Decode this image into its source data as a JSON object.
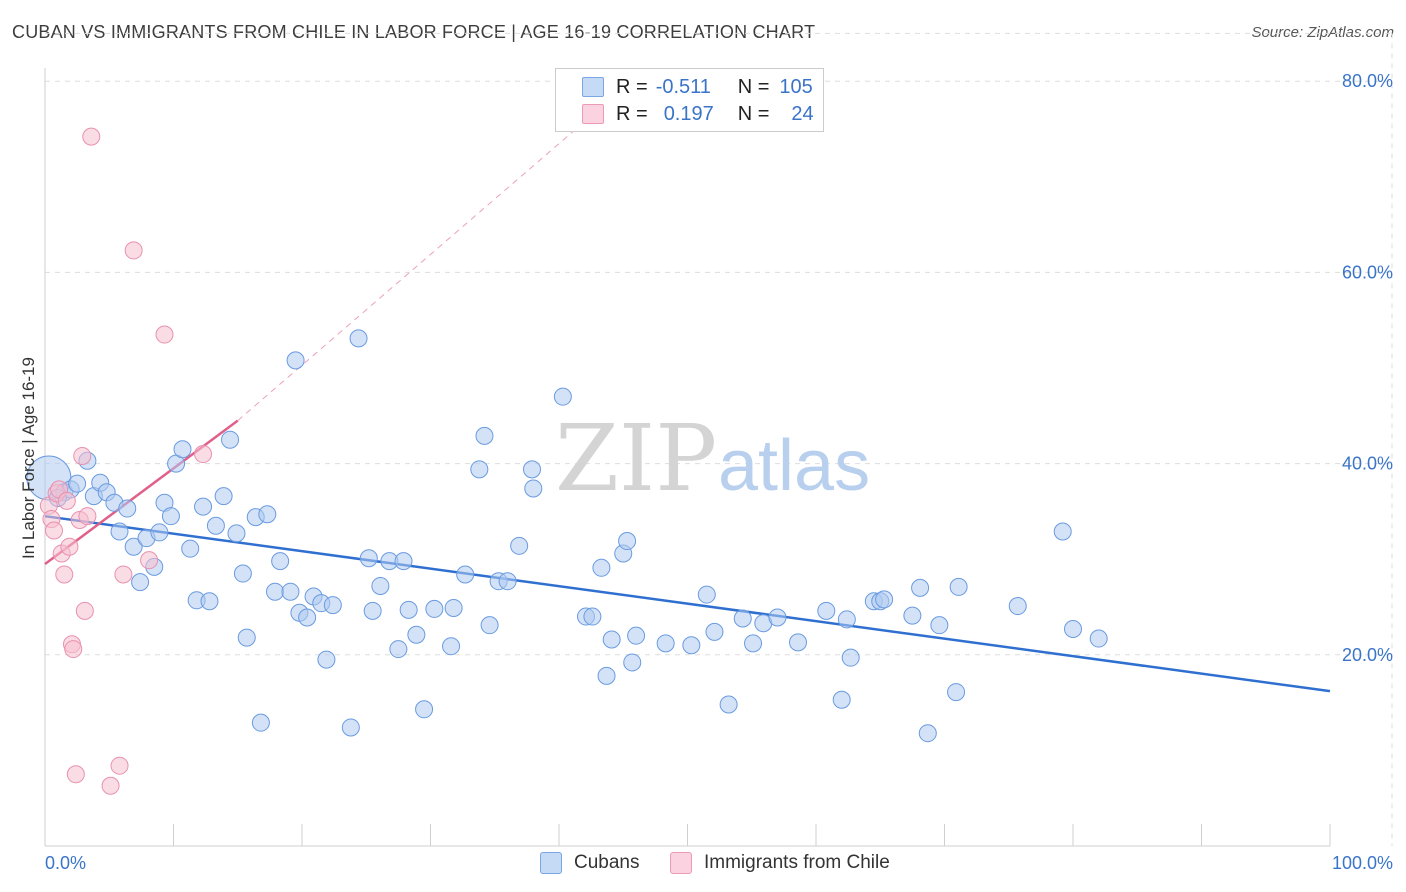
{
  "header": {
    "title": "CUBAN VS IMMIGRANTS FROM CHILE IN LABOR FORCE | AGE 16-19 CORRELATION CHART",
    "source": "Source: ZipAtlas.com"
  },
  "watermark": {
    "zip": "ZIP",
    "atlas": "atlas"
  },
  "legend_top": {
    "rows": [
      {
        "r_label": "R =",
        "r_value": "-0.511",
        "n_label": "N =",
        "n_value": "105"
      },
      {
        "r_label": "R =",
        "r_value": "0.197",
        "n_label": "N =",
        "n_value": "24"
      }
    ]
  },
  "colors": {
    "cubans_fill": "#aecbf0",
    "cubans_stroke": "#6a9be0",
    "cubans_line": "#2f6fd0",
    "chile_fill": "#f6bfd0",
    "chile_stroke": "#e991b0",
    "chile_line": "#e0608a",
    "axis_label": "#3a74c9",
    "grid": "#dddddd"
  },
  "chart_data": {
    "type": "scatter",
    "title": "CUBAN VS IMMIGRANTS FROM CHILE IN LABOR FORCE | AGE 16-19 CORRELATION CHART",
    "xlabel": "",
    "ylabel": "In Labor Force | Age 16-19",
    "xlim": [
      0,
      100
    ],
    "ylim": [
      0,
      85
    ],
    "x_tick_labels": [
      "0.0%",
      "100.0%"
    ],
    "y_ticks": [
      20,
      40,
      60,
      80
    ],
    "y_tick_labels": [
      "20.0%",
      "40.0%",
      "60.0%",
      "80.0%"
    ],
    "grid": true,
    "legend_position": "bottom",
    "series": [
      {
        "name": "Cubans",
        "R": -0.511,
        "N": 105,
        "trend": {
          "x": [
            0,
            100
          ],
          "y": [
            34.5,
            16.2
          ]
        },
        "points": [
          {
            "x": 0.3,
            "y": 38.5,
            "big": true
          },
          {
            "x": 1.5,
            "y": 37.0
          },
          {
            "x": 2.0,
            "y": 37.3
          },
          {
            "x": 1.0,
            "y": 36.4
          },
          {
            "x": 2.5,
            "y": 37.9
          },
          {
            "x": 3.3,
            "y": 40.3
          },
          {
            "x": 3.8,
            "y": 36.6
          },
          {
            "x": 4.3,
            "y": 38.0
          },
          {
            "x": 4.8,
            "y": 37.0
          },
          {
            "x": 5.4,
            "y": 35.9
          },
          {
            "x": 5.8,
            "y": 32.9
          },
          {
            "x": 6.4,
            "y": 35.3
          },
          {
            "x": 6.9,
            "y": 31.3
          },
          {
            "x": 7.4,
            "y": 27.6
          },
          {
            "x": 7.9,
            "y": 32.2
          },
          {
            "x": 8.5,
            "y": 29.2
          },
          {
            "x": 8.9,
            "y": 32.8
          },
          {
            "x": 9.3,
            "y": 35.9
          },
          {
            "x": 9.8,
            "y": 34.5
          },
          {
            "x": 10.2,
            "y": 40.0
          },
          {
            "x": 10.7,
            "y": 41.5
          },
          {
            "x": 11.3,
            "y": 31.1
          },
          {
            "x": 11.8,
            "y": 25.7
          },
          {
            "x": 12.3,
            "y": 35.5
          },
          {
            "x": 12.8,
            "y": 25.6
          },
          {
            "x": 13.3,
            "y": 33.5
          },
          {
            "x": 13.9,
            "y": 36.6
          },
          {
            "x": 14.4,
            "y": 42.5
          },
          {
            "x": 14.9,
            "y": 32.7
          },
          {
            "x": 15.4,
            "y": 28.5
          },
          {
            "x": 15.7,
            "y": 21.8
          },
          {
            "x": 16.4,
            "y": 34.4
          },
          {
            "x": 16.8,
            "y": 12.9
          },
          {
            "x": 17.3,
            "y": 34.7
          },
          {
            "x": 17.9,
            "y": 26.6
          },
          {
            "x": 18.3,
            "y": 29.8
          },
          {
            "x": 19.1,
            "y": 26.6
          },
          {
            "x": 19.5,
            "y": 50.8
          },
          {
            "x": 19.8,
            "y": 24.4
          },
          {
            "x": 20.4,
            "y": 23.9
          },
          {
            "x": 20.9,
            "y": 26.1
          },
          {
            "x": 21.5,
            "y": 25.4
          },
          {
            "x": 21.9,
            "y": 19.5
          },
          {
            "x": 22.4,
            "y": 25.2
          },
          {
            "x": 23.8,
            "y": 12.4
          },
          {
            "x": 24.4,
            "y": 53.1
          },
          {
            "x": 25.2,
            "y": 30.1
          },
          {
            "x": 25.5,
            "y": 24.6
          },
          {
            "x": 26.1,
            "y": 27.2
          },
          {
            "x": 26.8,
            "y": 29.8
          },
          {
            "x": 27.5,
            "y": 20.6
          },
          {
            "x": 27.9,
            "y": 29.8
          },
          {
            "x": 28.3,
            "y": 24.7
          },
          {
            "x": 28.9,
            "y": 22.1
          },
          {
            "x": 29.5,
            "y": 14.3
          },
          {
            "x": 30.3,
            "y": 24.8
          },
          {
            "x": 31.6,
            "y": 20.9
          },
          {
            "x": 31.8,
            "y": 24.9
          },
          {
            "x": 32.7,
            "y": 28.4
          },
          {
            "x": 33.8,
            "y": 39.4
          },
          {
            "x": 34.2,
            "y": 42.9
          },
          {
            "x": 34.6,
            "y": 23.1
          },
          {
            "x": 35.3,
            "y": 27.7
          },
          {
            "x": 36.0,
            "y": 27.7
          },
          {
            "x": 36.9,
            "y": 31.4
          },
          {
            "x": 37.9,
            "y": 39.4
          },
          {
            "x": 38.0,
            "y": 37.4
          },
          {
            "x": 40.3,
            "y": 47.0
          },
          {
            "x": 42.1,
            "y": 24.0
          },
          {
            "x": 42.6,
            "y": 24.0
          },
          {
            "x": 43.3,
            "y": 29.1
          },
          {
            "x": 43.7,
            "y": 17.8
          },
          {
            "x": 44.1,
            "y": 21.6
          },
          {
            "x": 45.0,
            "y": 30.6
          },
          {
            "x": 45.3,
            "y": 31.9
          },
          {
            "x": 45.7,
            "y": 19.2
          },
          {
            "x": 46.0,
            "y": 22.0
          },
          {
            "x": 48.3,
            "y": 21.2
          },
          {
            "x": 50.3,
            "y": 21.0
          },
          {
            "x": 51.5,
            "y": 26.3
          },
          {
            "x": 52.1,
            "y": 22.4
          },
          {
            "x": 53.2,
            "y": 14.8
          },
          {
            "x": 54.3,
            "y": 23.8
          },
          {
            "x": 55.1,
            "y": 21.2
          },
          {
            "x": 55.9,
            "y": 23.3
          },
          {
            "x": 57.0,
            "y": 23.9
          },
          {
            "x": 58.6,
            "y": 21.3
          },
          {
            "x": 60.8,
            "y": 24.6
          },
          {
            "x": 62.0,
            "y": 15.3
          },
          {
            "x": 62.4,
            "y": 23.7
          },
          {
            "x": 62.7,
            "y": 19.7
          },
          {
            "x": 64.5,
            "y": 25.6
          },
          {
            "x": 65.0,
            "y": 25.6
          },
          {
            "x": 65.3,
            "y": 25.8
          },
          {
            "x": 67.5,
            "y": 24.1
          },
          {
            "x": 68.1,
            "y": 27.0
          },
          {
            "x": 68.7,
            "y": 11.8
          },
          {
            "x": 69.6,
            "y": 23.1
          },
          {
            "x": 70.9,
            "y": 16.1
          },
          {
            "x": 71.1,
            "y": 27.1
          },
          {
            "x": 75.7,
            "y": 25.1
          },
          {
            "x": 79.2,
            "y": 32.9
          },
          {
            "x": 80.0,
            "y": 22.7
          },
          {
            "x": 82.0,
            "y": 21.7
          }
        ]
      },
      {
        "name": "Immigrants from Chile",
        "R": 0.197,
        "N": 24,
        "trend": {
          "x": [
            0,
            15
          ],
          "y": [
            29.5,
            44.5
          ]
        },
        "trend_dashed_extension": {
          "x": [
            15,
            46.5
          ],
          "y": [
            44.5,
            81
          ]
        },
        "points": [
          {
            "x": 0.3,
            "y": 35.6
          },
          {
            "x": 0.5,
            "y": 34.2
          },
          {
            "x": 0.7,
            "y": 33.0
          },
          {
            "x": 0.9,
            "y": 36.9
          },
          {
            "x": 1.1,
            "y": 37.3
          },
          {
            "x": 1.3,
            "y": 30.6
          },
          {
            "x": 1.5,
            "y": 28.4
          },
          {
            "x": 1.7,
            "y": 36.1
          },
          {
            "x": 1.9,
            "y": 31.3
          },
          {
            "x": 2.1,
            "y": 21.1
          },
          {
            "x": 2.2,
            "y": 20.6
          },
          {
            "x": 2.4,
            "y": 7.5
          },
          {
            "x": 2.7,
            "y": 34.1
          },
          {
            "x": 2.9,
            "y": 40.8
          },
          {
            "x": 3.1,
            "y": 24.6
          },
          {
            "x": 3.3,
            "y": 34.5
          },
          {
            "x": 3.6,
            "y": 74.2
          },
          {
            "x": 5.1,
            "y": 6.3
          },
          {
            "x": 5.8,
            "y": 8.4
          },
          {
            "x": 6.1,
            "y": 28.4
          },
          {
            "x": 6.9,
            "y": 62.3
          },
          {
            "x": 8.1,
            "y": 29.9
          },
          {
            "x": 9.3,
            "y": 53.5
          },
          {
            "x": 12.3,
            "y": 41.0
          }
        ]
      }
    ]
  },
  "bottom_legend": {
    "items": [
      "Cubans",
      "Immigrants from Chile"
    ]
  }
}
